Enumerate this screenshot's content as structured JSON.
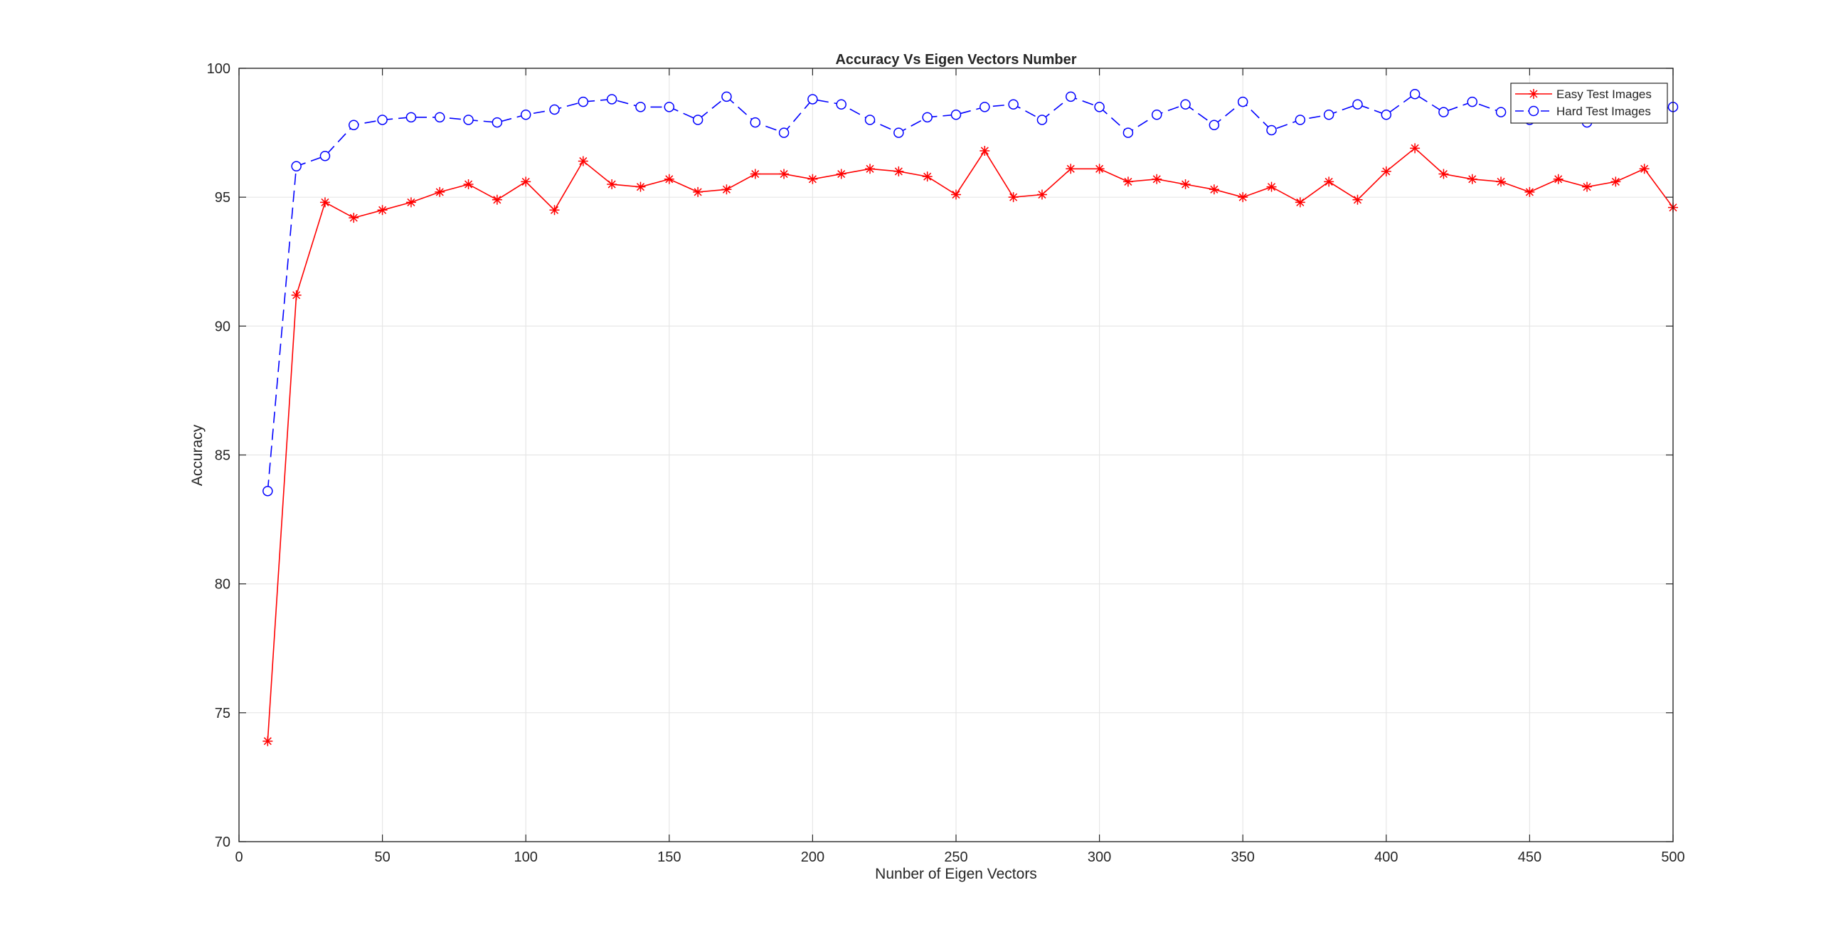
{
  "chart_data": {
    "type": "line",
    "title": "Accuracy Vs Eigen Vectors Number",
    "xlabel": "Nunber of Eigen Vectors",
    "ylabel": "Accuracy",
    "xlim": [
      0,
      500
    ],
    "ylim": [
      70,
      100
    ],
    "xticks": [
      0,
      50,
      100,
      150,
      200,
      250,
      300,
      350,
      400,
      450,
      500
    ],
    "yticks": [
      70,
      75,
      80,
      85,
      90,
      95,
      100
    ],
    "grid": true,
    "legend_position": "top-right",
    "x": [
      10,
      20,
      30,
      40,
      50,
      60,
      70,
      80,
      90,
      100,
      110,
      120,
      130,
      140,
      150,
      160,
      170,
      180,
      190,
      200,
      210,
      220,
      230,
      240,
      250,
      260,
      270,
      280,
      290,
      300,
      310,
      320,
      330,
      340,
      350,
      360,
      370,
      380,
      390,
      400,
      410,
      420,
      430,
      440,
      450,
      460,
      470,
      480,
      490,
      500
    ],
    "series": [
      {
        "name": "Easy Test Images",
        "color": "#ff0000",
        "line_style": "solid",
        "marker": "asterisk",
        "values": [
          73.9,
          91.2,
          94.8,
          94.2,
          94.5,
          94.8,
          95.2,
          95.5,
          94.9,
          95.6,
          94.5,
          96.4,
          95.5,
          95.4,
          95.7,
          95.2,
          95.3,
          95.9,
          95.9,
          95.7,
          95.9,
          96.1,
          96.0,
          95.8,
          95.1,
          96.8,
          95.0,
          95.1,
          96.1,
          96.1,
          95.6,
          95.7,
          95.5,
          95.3,
          95.0,
          95.4,
          94.8,
          95.6,
          94.9,
          96.0,
          96.9,
          95.9,
          95.7,
          95.6,
          95.2,
          95.7,
          95.4,
          95.6,
          96.1,
          94.6
        ]
      },
      {
        "name": "Hard Test Images",
        "color": "#0000ff",
        "line_style": "dashed",
        "marker": "circle",
        "values": [
          83.6,
          96.2,
          96.6,
          97.8,
          98.0,
          98.1,
          98.1,
          98.0,
          97.9,
          98.2,
          98.4,
          98.7,
          98.8,
          98.5,
          98.5,
          98.0,
          98.9,
          97.9,
          97.5,
          98.8,
          98.6,
          98.0,
          97.5,
          98.1,
          98.2,
          98.5,
          98.6,
          98.0,
          98.9,
          98.5,
          97.5,
          98.2,
          98.6,
          97.8,
          98.7,
          97.6,
          98.0,
          98.2,
          98.6,
          98.2,
          99.0,
          98.3,
          98.7,
          98.3,
          98.0,
          98.1,
          97.9,
          98.2,
          98.3,
          98.5
        ]
      }
    ]
  }
}
